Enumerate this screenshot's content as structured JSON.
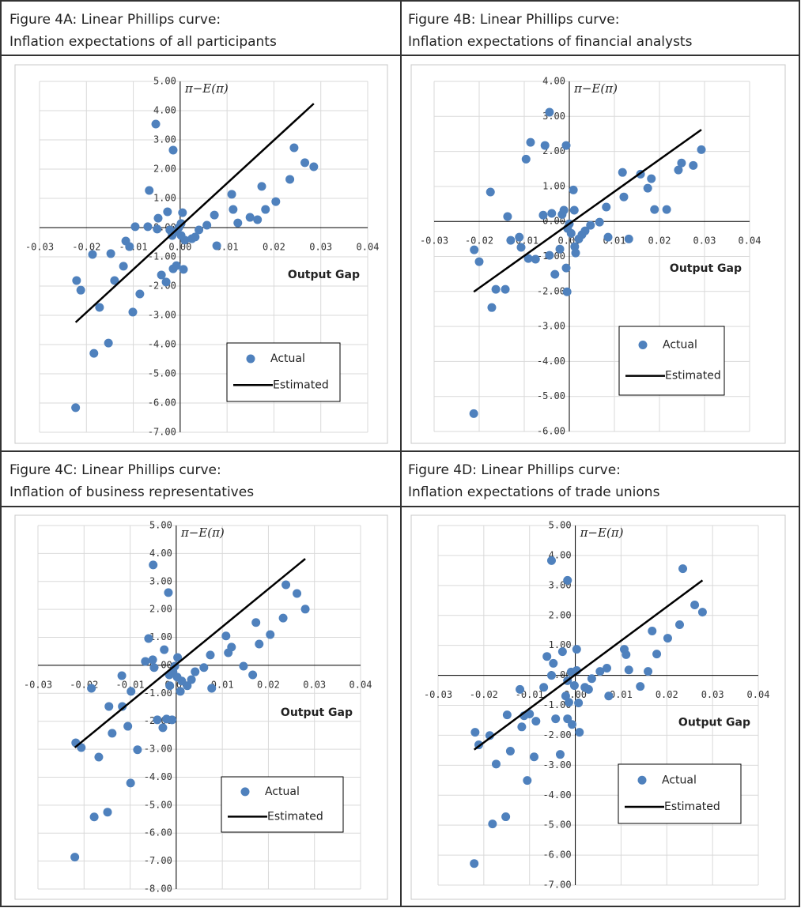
{
  "chart_data": [
    {
      "type": "scatter",
      "title": "Figure 4A: Linear Phillips curve:",
      "subtitle": "Inflation expectations of all participants",
      "y_label": "π−E(π)",
      "x_label": "Output Gap",
      "legend": "lower right",
      "grid": true,
      "xlim": [
        -0.03,
        0.04
      ],
      "xticks": [
        -0.03,
        -0.02,
        -0.01,
        {
          "value": 0,
          "label": "0.00"
        },
        0.01,
        0.02,
        0.03,
        0.04
      ],
      "ylim": [
        -7,
        5
      ],
      "yticks": [
        {
          "value": 5,
          "label": "5.00"
        },
        {
          "value": 4,
          "label": "4.00"
        },
        {
          "value": 3,
          "label": "3.00"
        },
        {
          "value": 2,
          "label": "2.00"
        },
        {
          "value": 1,
          "label": "1.00"
        },
        {
          "value": 0,
          "label": "0.00"
        },
        {
          "value": -1,
          "label": "-1.00"
        },
        {
          "value": -2,
          "label": "-2.00"
        },
        {
          "value": -3,
          "label": "-3.00"
        },
        {
          "value": -4,
          "label": "-4.00"
        },
        {
          "value": -5,
          "label": "-5.00"
        },
        {
          "value": -6,
          "label": "-6.00"
        },
        {
          "value": -7,
          "label": "-7.00"
        }
      ],
      "series": [
        {
          "name": "Actual",
          "color": "#4f81bd",
          "x": [
            -0.0223,
            -0.0221,
            -0.0212,
            -0.0184,
            -0.0187,
            -0.0172,
            -0.0153,
            -0.0148,
            -0.014,
            -0.0121,
            -0.0116,
            -0.0108,
            -0.0101,
            -0.0096,
            -0.0086,
            -0.0069,
            -0.0066,
            -0.0052,
            -0.0049,
            -0.0047,
            -0.004,
            -0.003,
            -0.0027,
            -0.0022,
            -0.0017,
            -0.0015,
            -0.0015,
            -0.0008,
            -0.0007,
            -0.0003,
            0.0002,
            0.0002,
            0.0005,
            0.0007,
            0.001,
            0.0025,
            0.0032,
            0.004,
            0.0057,
            0.0073,
            0.0078,
            0.011,
            0.0113,
            0.0123,
            0.0149,
            0.0165,
            0.0174,
            0.0182,
            0.0204,
            0.0234,
            0.0243,
            0.0266,
            0.0285
          ],
          "values": [
            -6.16,
            -1.81,
            -2.14,
            -4.3,
            -0.92,
            -2.73,
            -3.95,
            -0.89,
            -1.81,
            -1.32,
            -0.46,
            -0.65,
            -2.89,
            0.03,
            -2.27,
            0.03,
            1.27,
            3.54,
            -0.05,
            0.32,
            -1.62,
            -1.86,
            0.54,
            -0.08,
            -0.27,
            2.65,
            -1.41,
            -1.3,
            -0.14,
            0,
            -0.27,
            0.14,
            0.51,
            -1.43,
            -0.43,
            -0.38,
            -0.32,
            -0.08,
            0.08,
            0.43,
            -0.62,
            1.14,
            0.62,
            0.16,
            0.35,
            0.27,
            1.41,
            0.62,
            0.89,
            1.65,
            2.73,
            2.22,
            2.08
          ]
        },
        {
          "name": "Estimated",
          "color": "#000000",
          "x": [
            -0.0223,
            0.0285
          ],
          "values": [
            -3.24,
            4.24
          ]
        }
      ]
    },
    {
      "type": "scatter",
      "title": "Figure 4B: Linear Phillips curve:",
      "subtitle": "Inflation expectations of financial analysts",
      "y_label": "π−E(π)",
      "x_label": "Output Gap",
      "legend": "lower right",
      "grid": true,
      "xlim": [
        -0.03,
        0.04
      ],
      "xticks": [
        -0.03,
        -0.02,
        -0.01,
        {
          "value": 0,
          "label": "0.00"
        },
        0.01,
        0.02,
        0.03,
        0.04
      ],
      "ylim": [
        -6,
        4
      ],
      "yticks": [
        {
          "value": 4,
          "label": "4.00"
        },
        {
          "value": 3,
          "label": "3.00"
        },
        {
          "value": 2,
          "label": "2.00"
        },
        {
          "value": 1,
          "label": "1.00"
        },
        {
          "value": 0,
          "label": "0.00"
        },
        {
          "value": -1,
          "label": "-1.00"
        },
        {
          "value": -2,
          "label": "-2.00"
        },
        {
          "value": -3,
          "label": "-3.00"
        },
        {
          "value": -4,
          "label": "-4.00"
        },
        {
          "value": -5,
          "label": "-5.00"
        },
        {
          "value": -6,
          "label": "-6.00"
        }
      ],
      "series": [
        {
          "name": "Actual",
          "color": "#4f81bd",
          "x": [
            -0.0212,
            -0.0211,
            -0.02,
            -0.0175,
            -0.0172,
            -0.0163,
            -0.0142,
            -0.0137,
            -0.013,
            -0.0111,
            -0.0107,
            -0.0096,
            -0.0091,
            -0.0086,
            -0.0075,
            -0.0058,
            -0.0054,
            -0.0044,
            -0.0044,
            -0.0039,
            -0.0032,
            -0.0021,
            -0.0016,
            -0.0012,
            -0.0007,
            -0.0007,
            -0.0005,
            -0.0004,
            0,
            0.0004,
            0.0009,
            0.0011,
            0.0012,
            0.0014,
            0.0021,
            0.0028,
            0.0035,
            0.0047,
            0.0067,
            0.0082,
            0.0086,
            0.0118,
            0.0121,
            0.0132,
            0.0158,
            0.0174,
            0.0182,
            0.0189,
            0.0216,
            0.0242,
            0.0249,
            0.0275,
            0.0293
          ],
          "values": [
            -5.49,
            -0.81,
            -1.15,
            0.84,
            -2.46,
            -1.94,
            -1.94,
            0.14,
            -0.54,
            -0.45,
            -0.74,
            1.78,
            -1.06,
            2.26,
            -1.08,
            0.18,
            2.17,
            3.12,
            -0.97,
            0.23,
            -1.51,
            -0.79,
            0.2,
            0.32,
            2.17,
            -1.33,
            -2.01,
            -0.2,
            -0.07,
            -0.34,
            0.9,
            0.32,
            -0.72,
            -0.9,
            -0.5,
            -0.38,
            -0.27,
            -0.11,
            -0.02,
            0.41,
            -0.45,
            1.4,
            0.7,
            -0.5,
            1.35,
            0.95,
            1.22,
            0.34,
            0.34,
            1.47,
            1.67,
            1.6,
            2.05
          ]
        },
        {
          "name": "Estimated",
          "color": "#000000",
          "x": [
            -0.0212,
            0.0293
          ],
          "values": [
            -2.01,
            2.62
          ]
        }
      ]
    },
    {
      "type": "scatter",
      "title": "Figure 4C: Linear Phillips curve:",
      "subtitle": "Inflation of business representatives",
      "y_label": "π−E(π)",
      "x_label": "Output Gap",
      "legend": "lower right",
      "grid": true,
      "xlim": [
        -0.03,
        0.04
      ],
      "xticks": [
        -0.03,
        -0.02,
        -0.01,
        {
          "value": 0,
          "label": "0.00"
        },
        0.01,
        0.02,
        0.03,
        0.04
      ],
      "ylim": [
        -8,
        5
      ],
      "yticks": [
        {
          "value": 5,
          "label": "5.00"
        },
        {
          "value": 4,
          "label": "4.00"
        },
        {
          "value": 3,
          "label": "3.00"
        },
        {
          "value": 2,
          "label": "2.00"
        },
        {
          "value": 1,
          "label": "1.00"
        },
        {
          "value": 0,
          "label": "0.00"
        },
        {
          "value": -1,
          "label": "-1.00"
        },
        {
          "value": -2,
          "label": "-2.00"
        },
        {
          "value": -3,
          "label": "-3.00"
        },
        {
          "value": -4,
          "label": "-4.00"
        },
        {
          "value": -5,
          "label": "-5.00"
        },
        {
          "value": -6,
          "label": "-6.00"
        },
        {
          "value": -7,
          "label": "-7.00"
        },
        {
          "value": -8,
          "label": "-8.00"
        }
      ],
      "series": [
        {
          "name": "Actual",
          "color": "#4f81bd",
          "x": [
            -0.022,
            -0.0218,
            -0.0206,
            -0.0184,
            -0.0178,
            -0.0168,
            -0.0149,
            -0.0146,
            -0.0139,
            -0.0118,
            -0.0117,
            -0.0105,
            -0.0098,
            -0.0099,
            -0.0084,
            -0.0067,
            -0.006,
            -0.0051,
            -0.005,
            -0.0048,
            -0.0041,
            -0.0029,
            -0.0026,
            -0.0021,
            -0.0017,
            -0.0015,
            -0.0014,
            -0.0009,
            -0.0007,
            -0.0003,
            0.0002,
            0.0003,
            0.0009,
            0.0012,
            0.0024,
            0.0033,
            0.0041,
            0.006,
            0.0074,
            0.0077,
            0.0108,
            0.0113,
            0.012,
            0.0146,
            0.0166,
            0.0173,
            0.018,
            0.0204,
            0.0232,
            0.0238,
            0.0262,
            0.028
          ],
          "values": [
            -6.86,
            -2.77,
            -2.94,
            -0.82,
            -5.42,
            -3.28,
            -5.25,
            -1.47,
            -2.43,
            -0.37,
            -1.47,
            -2.18,
            -0.93,
            -4.21,
            -3.02,
            0.14,
            0.96,
            0.2,
            3.59,
            -0.08,
            -1.95,
            -2.23,
            0.56,
            -1.92,
            2.6,
            -0.34,
            -0.73,
            -1.95,
            -0.23,
            -0.03,
            -0.42,
            0.28,
            -0.93,
            -0.56,
            -0.73,
            -0.51,
            -0.23,
            -0.08,
            0.37,
            -0.82,
            1.05,
            0.45,
            0.65,
            -0.03,
            -0.34,
            1.53,
            0.76,
            1.1,
            1.69,
            2.88,
            2.57,
            2.01
          ]
        },
        {
          "name": "Estimated",
          "color": "#000000",
          "x": [
            -0.022,
            0.028
          ],
          "values": [
            -2.94,
            3.81
          ]
        }
      ]
    },
    {
      "type": "scatter",
      "title": "Figure 4D: Linear Phillips curve:",
      "subtitle": "Inflation expectations of trade unions",
      "y_label": "π−E(π)",
      "x_label": "Output Gap",
      "legend": "lower right",
      "grid": true,
      "xlim": [
        -0.03,
        0.04
      ],
      "xticks": [
        -0.03,
        -0.02,
        -0.01,
        {
          "value": 0,
          "label": "0.00"
        },
        0.01,
        0.02,
        0.03,
        0.04
      ],
      "ylim": [
        -7,
        5
      ],
      "yticks": [
        {
          "value": 5,
          "label": "5.00"
        },
        {
          "value": 4,
          "label": "4.00"
        },
        {
          "value": 3,
          "label": "3.00"
        },
        {
          "value": 2,
          "label": "2.00"
        },
        {
          "value": 1,
          "label": "1.00"
        },
        {
          "value": 0,
          "label": "0.00"
        },
        {
          "value": -1,
          "label": "-1.00"
        },
        {
          "value": -2,
          "label": "-2.00"
        },
        {
          "value": -3,
          "label": "-3.00"
        },
        {
          "value": -4,
          "label": "-4.00"
        },
        {
          "value": -5,
          "label": "-5.00"
        },
        {
          "value": -6,
          "label": "-6.00"
        },
        {
          "value": -7,
          "label": "-7.00"
        }
      ],
      "series": [
        {
          "name": "Actual",
          "color": "#4f81bd",
          "x": [
            -0.0221,
            -0.0219,
            -0.0211,
            -0.0187,
            -0.0181,
            -0.0173,
            -0.0149,
            -0.0142,
            -0.0152,
            -0.0121,
            -0.0117,
            -0.0112,
            -0.0105,
            -0.01,
            -0.009,
            -0.0086,
            -0.0069,
            -0.0062,
            -0.0052,
            -0.0052,
            -0.0048,
            -0.0043,
            -0.0033,
            -0.0028,
            -0.0021,
            -0.0017,
            -0.0017,
            -0.0017,
            -0.0014,
            -0.0009,
            -0.0007,
            -0.0002,
            0.0003,
            0.0003,
            0.0007,
            0.0009,
            0.0021,
            0.0029,
            0.0036,
            0.0054,
            0.0069,
            0.0073,
            0.0107,
            0.0111,
            0.0117,
            0.0142,
            0.0159,
            0.0168,
            0.0178,
            0.0202,
            0.0228,
            0.0235,
            0.0261,
            0.0278
          ],
          "values": [
            -6.28,
            -1.9,
            -2.32,
            -2.01,
            -4.96,
            -2.96,
            -1.32,
            -2.53,
            -4.72,
            -0.47,
            -1.72,
            -1.35,
            -3.51,
            -1.29,
            -2.72,
            -1.53,
            -0.4,
            0.63,
            0,
            3.83,
            0.4,
            -1.45,
            -2.64,
            0.79,
            -0.69,
            -0.18,
            3.17,
            -1.45,
            -0.9,
            0.11,
            -1.64,
            -0.34,
            0.87,
            0.16,
            -0.92,
            -1.9,
            -0.4,
            -0.47,
            -0.11,
            0.13,
            0.24,
            -0.69,
            0.87,
            0.69,
            0.18,
            -0.37,
            0.13,
            1.48,
            0.71,
            1.24,
            1.69,
            3.56,
            2.35,
            2.11
          ]
        },
        {
          "name": "Estimated",
          "color": "#000000",
          "x": [
            -0.0221,
            0.0278
          ],
          "values": [
            -2.48,
            3.17
          ]
        }
      ]
    }
  ]
}
